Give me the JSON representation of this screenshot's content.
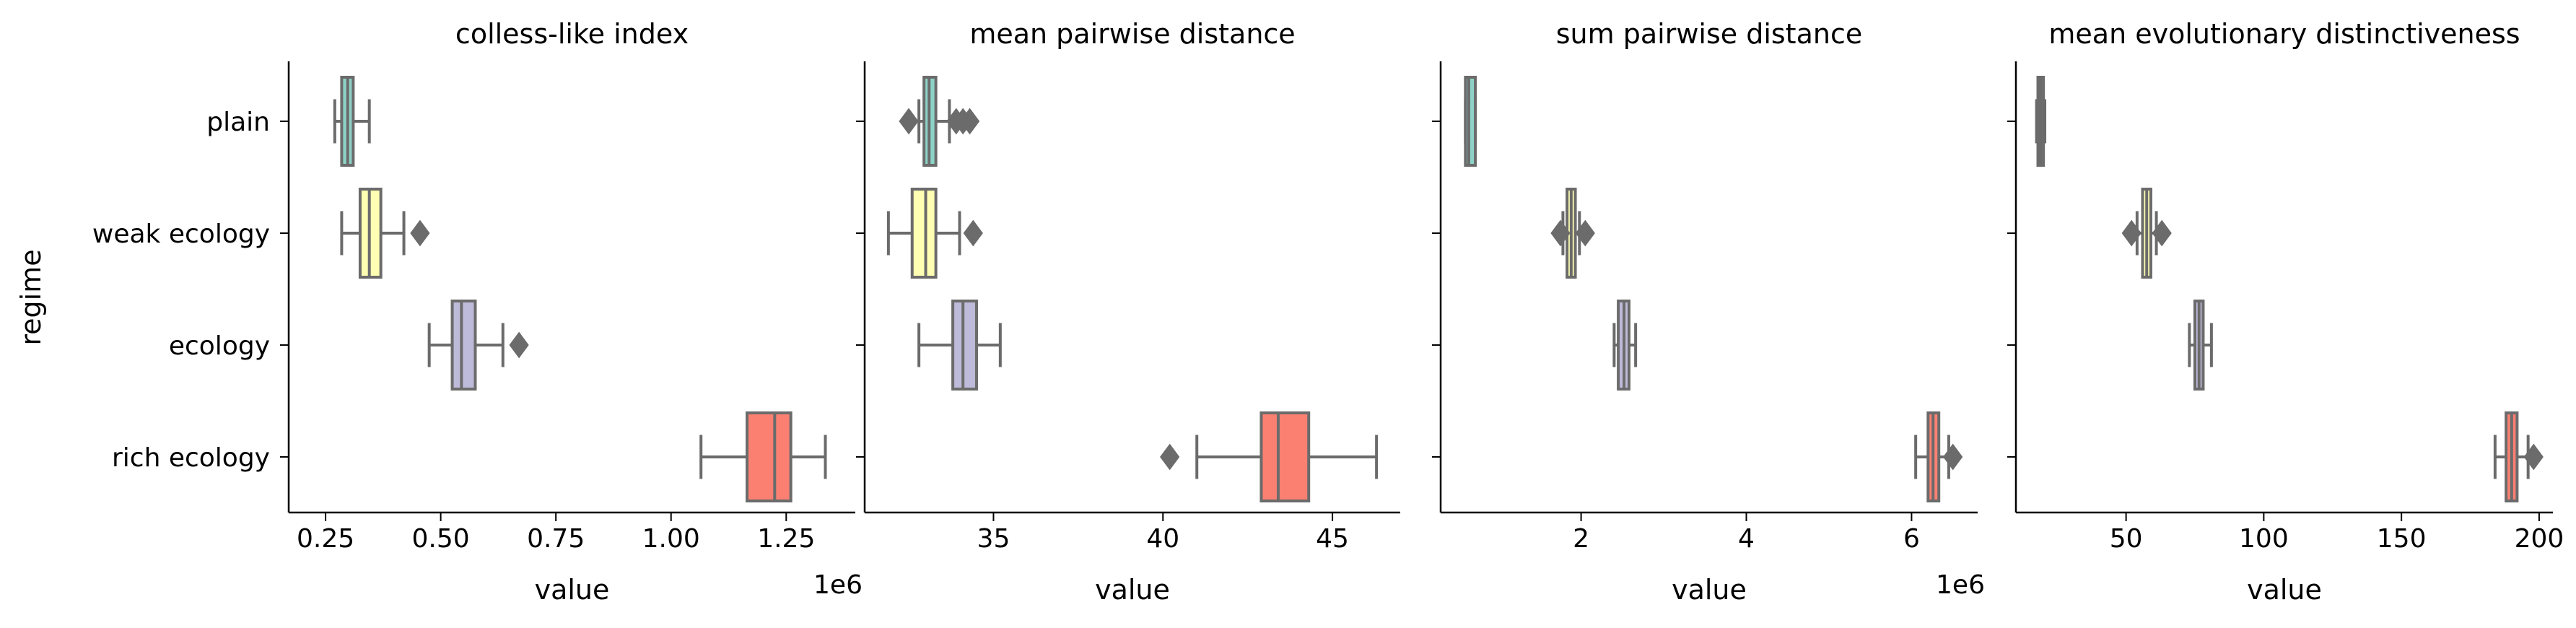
{
  "chart_data": {
    "type": "box",
    "ylabel": "regime",
    "categories": [
      "plain",
      "weak ecology",
      "ecology",
      "rich ecology"
    ],
    "colors": [
      "#8dd3c7",
      "#ffffb3",
      "#bebada",
      "#fb8072"
    ],
    "line_color": "#6b6b6b",
    "panels": [
      {
        "title": "colless-like index",
        "xlabel": "value",
        "xlim": [
          0.17,
          1.4
        ],
        "ticks": [
          0.25,
          0.5,
          0.75,
          1.0,
          1.25
        ],
        "tick_labels": [
          "0.25",
          "0.50",
          "0.75",
          "1.00",
          "1.25"
        ],
        "offset_text": "1e6",
        "boxes": [
          {
            "whislo": 0.27,
            "q1": 0.285,
            "med": 0.298,
            "q3": 0.31,
            "whishi": 0.345,
            "fliers": []
          },
          {
            "whislo": 0.285,
            "q1": 0.325,
            "med": 0.345,
            "q3": 0.37,
            "whishi": 0.42,
            "fliers": [
              0.455
            ]
          },
          {
            "whislo": 0.475,
            "q1": 0.525,
            "med": 0.545,
            "q3": 0.575,
            "whishi": 0.635,
            "fliers": [
              0.67
            ]
          },
          {
            "whislo": 1.065,
            "q1": 1.165,
            "med": 1.225,
            "q3": 1.26,
            "whishi": 1.335,
            "fliers": []
          }
        ]
      },
      {
        "title": "mean pairwise distance",
        "xlabel": "value",
        "xlim": [
          31.2,
          47.0
        ],
        "ticks": [
          35,
          40,
          45
        ],
        "tick_labels": [
          "35",
          "40",
          "45"
        ],
        "offset_text": "",
        "boxes": [
          {
            "whislo": 32.8,
            "q1": 32.95,
            "med": 33.1,
            "q3": 33.3,
            "whishi": 33.7,
            "fliers": [
              32.5,
              33.9,
              34.1,
              34.3
            ]
          },
          {
            "whislo": 31.9,
            "q1": 32.6,
            "med": 33.0,
            "q3": 33.3,
            "whishi": 34.0,
            "fliers": [
              34.4
            ]
          },
          {
            "whislo": 32.8,
            "q1": 33.8,
            "med": 34.1,
            "q3": 34.5,
            "whishi": 35.2,
            "fliers": []
          },
          {
            "whislo": 41.0,
            "q1": 42.9,
            "med": 43.4,
            "q3": 44.3,
            "whishi": 46.3,
            "fliers": [
              40.2
            ]
          }
        ]
      },
      {
        "title": "sum pairwise distance",
        "xlabel": "value",
        "xlim": [
          0.3,
          6.8
        ],
        "ticks": [
          2,
          4,
          6
        ],
        "tick_labels": [
          "2",
          "4",
          "6"
        ],
        "offset_text": "1e6",
        "boxes": [
          {
            "whislo": 0.6,
            "q1": 0.6,
            "med": 0.64,
            "q3": 0.72,
            "whishi": 0.72,
            "fliers": []
          },
          {
            "whislo": 1.78,
            "q1": 1.83,
            "med": 1.88,
            "q3": 1.93,
            "whishi": 1.98,
            "fliers": [
              1.75,
              2.05
            ]
          },
          {
            "whislo": 2.4,
            "q1": 2.45,
            "med": 2.52,
            "q3": 2.58,
            "whishi": 2.66,
            "fliers": []
          },
          {
            "whislo": 6.05,
            "q1": 6.2,
            "med": 6.26,
            "q3": 6.33,
            "whishi": 6.45,
            "fliers": [
              6.5
            ]
          }
        ]
      },
      {
        "title": "mean evolutionary distinctiveness",
        "xlabel": "value",
        "xlim": [
          10,
          205
        ],
        "ticks": [
          50,
          100,
          150,
          200
        ],
        "tick_labels": [
          "50",
          "100",
          "150",
          "200"
        ],
        "offset_text": "",
        "boxes": [
          {
            "whislo": 17.5,
            "q1": 18,
            "med": 19,
            "q3": 20,
            "whishi": 20.5,
            "fliers": []
          },
          {
            "whislo": 54,
            "q1": 56,
            "med": 57.5,
            "q3": 59,
            "whishi": 61,
            "fliers": [
              52,
              63
            ]
          },
          {
            "whislo": 73,
            "q1": 75,
            "med": 76.5,
            "q3": 78,
            "whishi": 81,
            "fliers": []
          },
          {
            "whislo": 184,
            "q1": 188,
            "med": 190,
            "q3": 192,
            "whishi": 196,
            "fliers": [
              198
            ]
          }
        ]
      }
    ]
  }
}
